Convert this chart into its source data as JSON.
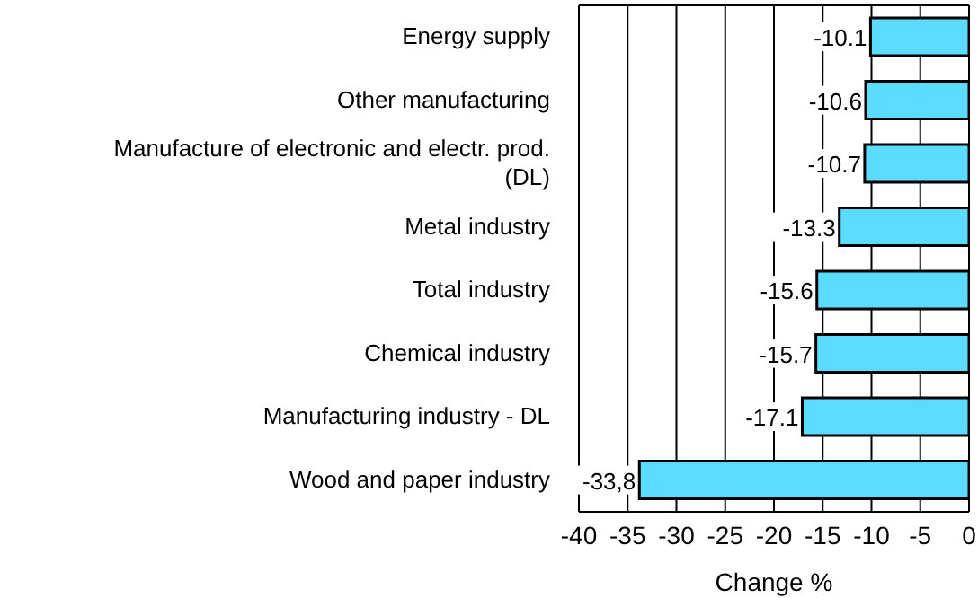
{
  "chart_data": {
    "type": "bar",
    "orientation": "horizontal",
    "xlabel": "Change %",
    "categories": [
      "Energy supply",
      "Other manufacturing",
      "Manufacture of electronic and electr. prod. (DL)",
      "Metal industry",
      "Total industry",
      "Chemical industry",
      "Manufacturing industry - DL",
      "Wood and paper industry"
    ],
    "values": [
      -10.1,
      -10.6,
      -10.7,
      -13.3,
      -15.6,
      -15.7,
      -17.1,
      -33.8
    ],
    "value_labels": [
      "-10.1",
      "-10.6",
      "-10.7",
      "-13.3",
      "-15.6",
      "-15.7",
      "-17.1",
      "-33,8"
    ],
    "color": "#5bdcff",
    "xlim": [
      -40,
      0
    ],
    "xticks": [
      -40,
      -35,
      -30,
      -25,
      -20,
      -15,
      -10,
      -5,
      0
    ],
    "grid": "x"
  }
}
